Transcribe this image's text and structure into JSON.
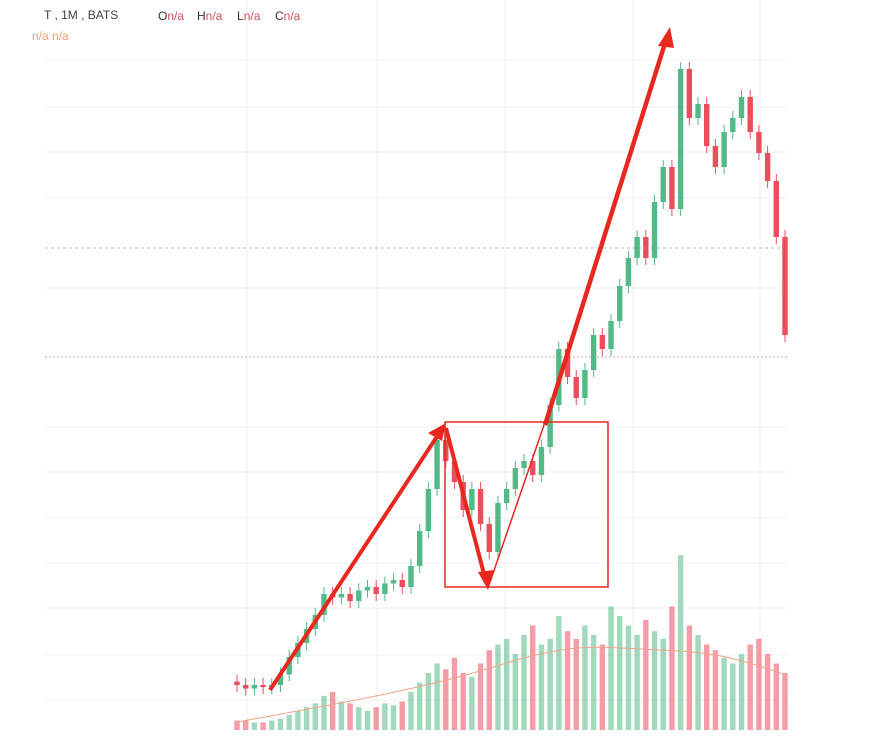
{
  "header": {
    "symbol": "T , 1M , BATS",
    "ohlc": [
      {
        "label": "O",
        "value": "n/a"
      },
      {
        "label": "H",
        "value": "n/a"
      },
      {
        "label": "L",
        "value": "n/a"
      },
      {
        "label": "C",
        "value": "n/a"
      }
    ],
    "indicator": [
      "n/a",
      "n/a"
    ]
  },
  "chart_data": {
    "type": "candlestick",
    "up_color": "#53b987",
    "down_color": "#eb4d5c",
    "ylim": [
      0,
      100
    ],
    "volume_lim": [
      0,
      100
    ],
    "open": [
      5.5,
      5,
      4.5,
      5,
      4.7,
      5,
      6.5,
      9,
      11,
      13,
      15,
      18,
      17.5,
      18,
      17,
      18.5,
      19,
      18,
      19.5,
      20,
      19,
      22,
      27,
      33,
      40,
      37,
      34,
      30,
      33,
      28,
      24,
      31,
      33,
      36,
      37,
      35,
      39,
      45,
      53,
      49,
      46,
      50,
      55,
      53,
      57,
      62,
      66,
      69,
      66,
      74,
      79,
      73,
      93,
      86,
      88,
      82,
      79,
      84,
      86,
      89,
      84,
      81,
      77,
      69
    ],
    "high": [
      6.5,
      6,
      6,
      6,
      6,
      7.5,
      10,
      12,
      14,
      16,
      19,
      19,
      19,
      19,
      19.5,
      20,
      20,
      20.5,
      21,
      21,
      23,
      28,
      34,
      41,
      41,
      38,
      35,
      34,
      34,
      29,
      32,
      34,
      37,
      38,
      38,
      40,
      46,
      54,
      54,
      50,
      51,
      56,
      56,
      58,
      63,
      67,
      70,
      70,
      75,
      80,
      80,
      94,
      94,
      89,
      89,
      83,
      85,
      87,
      90,
      90,
      85,
      82,
      78,
      70
    ],
    "low": [
      4,
      3.5,
      3.5,
      3.7,
      3.7,
      4,
      5.5,
      8,
      10,
      12,
      14,
      16.5,
      16.5,
      16,
      16,
      17.5,
      17,
      17,
      18.5,
      18,
      18,
      21,
      26,
      32,
      36,
      33,
      29,
      29,
      27,
      23,
      23,
      30,
      32,
      35,
      34,
      34,
      38,
      44,
      48,
      45,
      45,
      49,
      52,
      52,
      56,
      61,
      65,
      65,
      65,
      73,
      72,
      72,
      85,
      85,
      81,
      78,
      78,
      83,
      85,
      83,
      80,
      76,
      68,
      54
    ],
    "close": [
      5,
      4.5,
      5,
      4.7,
      5,
      6.5,
      9,
      11,
      13,
      15,
      18,
      17.5,
      18,
      17,
      18.5,
      19,
      18,
      19.5,
      20,
      19,
      22,
      27,
      33,
      40,
      37,
      34,
      30,
      33,
      28,
      24,
      31,
      33,
      36,
      37,
      35,
      39,
      45,
      53,
      49,
      46,
      50,
      55,
      53,
      57,
      62,
      66,
      69,
      66,
      74,
      79,
      73,
      93,
      86,
      88,
      82,
      79,
      84,
      86,
      89,
      84,
      81,
      77,
      69,
      55
    ],
    "volume": [
      5,
      5,
      4,
      4,
      5,
      6,
      8,
      10,
      12,
      14,
      18,
      20,
      15,
      14,
      12,
      10,
      12,
      14,
      13,
      15,
      20,
      25,
      30,
      35,
      32,
      38,
      30,
      28,
      35,
      42,
      45,
      48,
      40,
      50,
      55,
      45,
      48,
      60,
      52,
      48,
      55,
      50,
      45,
      65,
      60,
      55,
      50,
      58,
      52,
      48,
      65,
      92,
      55,
      50,
      45,
      42,
      38,
      35,
      40,
      45,
      48,
      40,
      35,
      30
    ]
  }
}
